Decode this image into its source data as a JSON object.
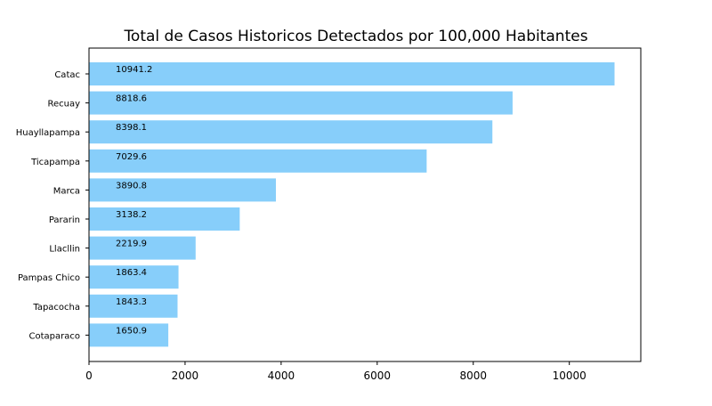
{
  "chart_data": {
    "type": "bar",
    "orientation": "horizontal",
    "title": "Total de Casos Historicos Detectados por 100,000 Habitantes",
    "xlabel": "",
    "ylabel": "",
    "categories": [
      "Catac",
      "Recuay",
      "Huayllapampa",
      "Ticapampa",
      "Marca",
      "Pararin",
      "Llacllin",
      "Pampas Chico",
      "Tapacocha",
      "Cotaparaco"
    ],
    "values": [
      10941.2,
      8818.6,
      8398.1,
      7029.6,
      3890.8,
      3138.2,
      2219.9,
      1863.4,
      1843.3,
      1650.9
    ],
    "value_labels": [
      "10941.2",
      "8818.6",
      "8398.1",
      "7029.6",
      "3890.8",
      "3138.2",
      "2219.9",
      "1863.4",
      "1843.3",
      "1650.9"
    ],
    "xlim": [
      0,
      11488
    ],
    "xticks": [
      0,
      2000,
      4000,
      6000,
      8000,
      10000
    ],
    "xtick_labels": [
      "0",
      "2000",
      "4000",
      "6000",
      "8000",
      "10000"
    ],
    "bar_color": "#87cefa",
    "grid": false,
    "legend": "none"
  }
}
